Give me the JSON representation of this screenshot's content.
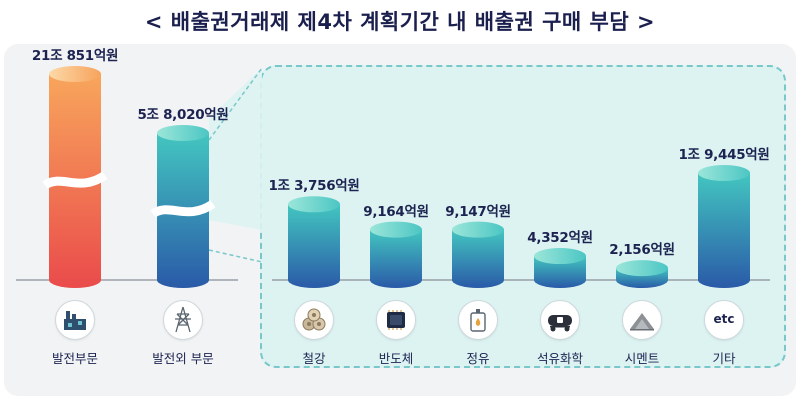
{
  "title": "< 배출권거래제 제4차 계획기간 내 배출권 구매 부담 >",
  "colors": {
    "power_top": "#f8a65c",
    "power_bottom": "#ea4b4b",
    "sector_top": "#43c6c0",
    "sector_bottom": "#2a5aa8",
    "text": "#1d2350"
  },
  "chart_data": {
    "type": "bar",
    "unit": "억원",
    "categories": [
      "발전부문",
      "발전외 부문",
      "철강",
      "반도체",
      "정유",
      "석유화학",
      "시멘트",
      "기타"
    ],
    "values": [
      218510,
      58020,
      13756,
      9164,
      9147,
      4352,
      2156,
      19445
    ],
    "value_labels": [
      "21조 851억원",
      "5조 8,020억원",
      "1조 3,756억원",
      "9,164억원",
      "9,147억원",
      "4,352억원",
      "2,156억원",
      "1조 9,445억원"
    ],
    "broken_axis_categories": [
      "발전부문",
      "발전외 부문"
    ],
    "icons": [
      "power-plant-icon",
      "transmission-tower-icon",
      "steel-coils-icon",
      "semiconductor-chip-icon",
      "oil-can-icon",
      "tank-wagon-icon",
      "cement-pile-icon",
      "etc-icon"
    ],
    "etc_icon_text": "etc",
    "grid": false,
    "legend": "none"
  }
}
